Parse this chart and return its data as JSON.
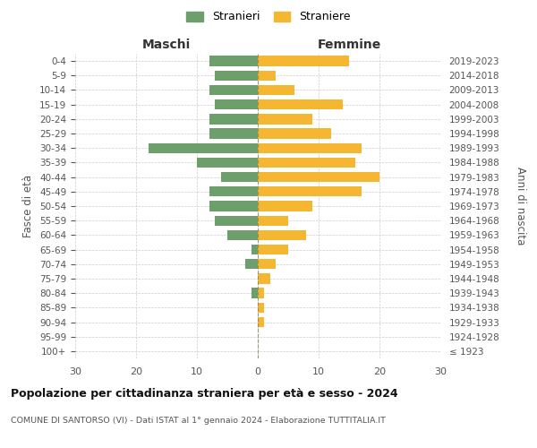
{
  "age_groups": [
    "100+",
    "95-99",
    "90-94",
    "85-89",
    "80-84",
    "75-79",
    "70-74",
    "65-69",
    "60-64",
    "55-59",
    "50-54",
    "45-49",
    "40-44",
    "35-39",
    "30-34",
    "25-29",
    "20-24",
    "15-19",
    "10-14",
    "5-9",
    "0-4"
  ],
  "birth_years": [
    "≤ 1923",
    "1924-1928",
    "1929-1933",
    "1934-1938",
    "1939-1943",
    "1944-1948",
    "1949-1953",
    "1954-1958",
    "1959-1963",
    "1964-1968",
    "1969-1973",
    "1974-1978",
    "1979-1983",
    "1984-1988",
    "1989-1993",
    "1994-1998",
    "1999-2003",
    "2004-2008",
    "2009-2013",
    "2014-2018",
    "2019-2023"
  ],
  "males": [
    0,
    0,
    0,
    0,
    1,
    0,
    2,
    1,
    5,
    7,
    8,
    8,
    6,
    10,
    18,
    8,
    8,
    7,
    8,
    7,
    8
  ],
  "females": [
    0,
    0,
    1,
    1,
    1,
    2,
    3,
    5,
    8,
    5,
    9,
    17,
    20,
    16,
    17,
    12,
    9,
    14,
    6,
    3,
    15
  ],
  "male_color": "#6d9f6d",
  "female_color": "#f5b731",
  "background_color": "#ffffff",
  "grid_color": "#cccccc",
  "title": "Popolazione per cittadinanza straniera per età e sesso - 2024",
  "subtitle": "COMUNE DI SANTORSO (VI) - Dati ISTAT al 1° gennaio 2024 - Elaborazione TUTTITALIA.IT",
  "xlabel_left": "Maschi",
  "xlabel_right": "Femmine",
  "ylabel_left": "Fasce di età",
  "ylabel_right": "Anni di nascita",
  "xlim": 30,
  "legend_male": "Stranieri",
  "legend_female": "Straniere",
  "label_color": "#555555"
}
